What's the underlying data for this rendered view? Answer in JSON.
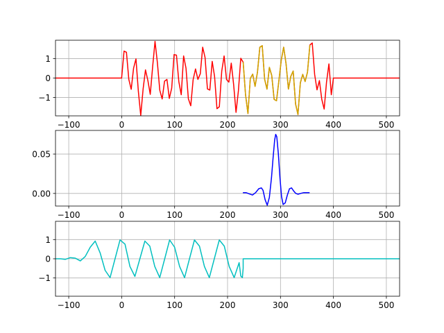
{
  "chart_data": [
    {
      "type": "line",
      "xlim": [
        -125,
        525
      ],
      "ylim": [
        -1.95,
        1.95
      ],
      "grid": true,
      "xticks": [
        -100,
        0,
        100,
        200,
        300,
        400,
        500
      ],
      "xtick_labels": [
        "−100",
        "0",
        "100",
        "200",
        "300",
        "400",
        "500"
      ],
      "yticks": [
        1,
        0,
        -1
      ],
      "ytick_labels": [
        "1",
        "0",
        "−1"
      ],
      "series": [
        {
          "color": "#ff0000",
          "x": [
            -125,
            -50,
            0,
            0,
            4.5,
            9,
            13.5,
            18,
            22.5,
            27,
            31.5,
            36,
            40.5,
            45,
            49.5,
            54,
            58.5,
            63,
            67.5,
            72,
            76.5,
            81,
            85.5,
            90,
            94.5,
            99,
            103.5,
            108,
            112.5,
            117,
            121.5,
            126,
            130.5,
            135,
            139.5,
            144,
            148.5,
            153,
            157.5,
            162,
            166.5,
            171,
            175.5,
            180,
            184.5,
            189,
            193.5,
            198,
            202.5,
            207,
            211.5,
            216,
            220.5,
            225,
            229.5,
            234,
            238.5,
            243,
            247.5,
            252,
            256.5,
            261,
            265.5,
            270,
            274.5,
            279,
            283.5,
            288,
            292.5,
            297,
            301.5,
            306,
            310.5,
            315,
            319.5,
            324,
            328.5,
            333,
            337.5,
            342,
            346.5,
            351,
            355.5,
            360,
            364.5,
            369,
            373.5,
            378,
            382.5,
            387,
            391.5,
            396,
            400,
            400,
            450,
            525
          ],
          "y": [
            0,
            0,
            0,
            0.03,
            1.39,
            1.33,
            -0.07,
            -0.58,
            0.51,
            0.99,
            -0.68,
            -1.93,
            -0.56,
            0.42,
            -0.13,
            -0.84,
            0.58,
            1.89,
            0.78,
            -0.63,
            -1.08,
            -0.16,
            -0.07,
            -1.05,
            -0.52,
            1.21,
            1.18,
            -0.19,
            -0.86,
            1.14,
            0.51,
            -1.07,
            -1.43,
            -0.08,
            0.47,
            -0.07,
            0.22,
            1.59,
            1.06,
            -0.56,
            -0.62,
            0.86,
            0.08,
            -1.58,
            -1.48,
            0.35,
            1.14,
            -0.07,
            -0.21,
            0.77,
            -0.34,
            -1.77,
            -0.66,
            1.02,
            0.82,
            -0.86,
            -1.83,
            -0.02,
            0.2,
            -0.43,
            0.3,
            1.59,
            1.67,
            -0.06,
            -0.57,
            0.55,
            0.13,
            -1.1,
            -1.17,
            -0.13,
            0.93,
            1.59,
            0.74,
            -0.57,
            0.09,
            0.36,
            -1.34,
            -1.88,
            -0.25,
            0.19,
            -0.18,
            0.3,
            1.7,
            1.81,
            0.19,
            -0.61,
            -0.13,
            -1.1,
            -1.6,
            -0.2,
            0.73,
            -0.86,
            0,
            0,
            0,
            0
          ]
        },
        {
          "color": "#ccaa00",
          "x": [
            229.5,
            234,
            238.5,
            243,
            247.5,
            252,
            256.5,
            261,
            265.5,
            270,
            274.5,
            279,
            283.5,
            288,
            292.5,
            297,
            301.5,
            306,
            310.5,
            315,
            319.5,
            324,
            328.5,
            333,
            337.5,
            342,
            346.5,
            351,
            355.5
          ],
          "y": [
            0.82,
            -0.86,
            -1.83,
            -0.02,
            0.2,
            -0.43,
            0.3,
            1.59,
            1.67,
            -0.06,
            -0.57,
            0.55,
            0.13,
            -1.1,
            -1.17,
            -0.13,
            0.93,
            1.59,
            0.74,
            -0.57,
            0.09,
            0.36,
            -1.34,
            -1.88,
            -0.25,
            0.19,
            -0.18,
            0.3,
            1.7
          ]
        }
      ]
    },
    {
      "type": "line",
      "xlim": [
        -125,
        525
      ],
      "ylim": [
        -0.016,
        0.08
      ],
      "grid": true,
      "xticks": [
        -100,
        0,
        100,
        200,
        300,
        400,
        500
      ],
      "xtick_labels": [
        "−100",
        "0",
        "100",
        "200",
        "300",
        "400",
        "500"
      ],
      "yticks": [
        0.05,
        0.0
      ],
      "ytick_labels": [
        "0.05",
        "0.00"
      ],
      "series": [
        {
          "color": "#0000ff",
          "x": [
            229,
            235,
            241,
            247,
            253,
            259,
            264,
            267,
            271,
            275,
            279,
            283,
            286,
            289,
            291,
            293,
            296,
            299,
            302,
            305,
            309,
            313,
            317,
            321,
            325,
            329,
            333,
            338,
            344,
            350,
            355
          ],
          "y": [
            0.001,
            0.001,
            -0.0005,
            -0.002,
            0.001,
            0.006,
            0.007,
            0.004,
            -0.008,
            -0.015,
            -0.005,
            0.02,
            0.045,
            0.068,
            0.075,
            0.072,
            0.05,
            0.02,
            -0.004,
            -0.014,
            -0.012,
            -0.002,
            0.006,
            0.007,
            0.003,
            0.0,
            -0.001,
            0.0,
            0.001,
            0.001,
            0.001
          ]
        }
      ]
    },
    {
      "type": "line",
      "xlim": [
        -125,
        525
      ],
      "ylim": [
        -1.95,
        1.95
      ],
      "grid": true,
      "xticks": [
        -100,
        0,
        100,
        200,
        300,
        400,
        500
      ],
      "xtick_labels": [
        "−100",
        "0",
        "100",
        "200",
        "300",
        "400",
        "500"
      ],
      "yticks": [
        1,
        0,
        -1
      ],
      "ytick_labels": [
        "1",
        "0",
        "−1"
      ],
      "series": [
        {
          "color": "#00bfbf",
          "x": [
            -125,
            -115.6,
            -106.3,
            -96.9,
            -87.5,
            -78.1,
            -68.8,
            -59.4,
            -50,
            -40.6,
            -31.3,
            -21.9,
            -12.5,
            -3.1,
            6.3,
            15.6,
            25,
            34.4,
            43.8,
            53.1,
            62.5,
            71.9,
            81.3,
            90.6,
            100,
            109.4,
            118.8,
            128.1,
            137.5,
            146.9,
            156.3,
            165.6,
            175,
            184.4,
            193.8,
            203.1,
            212.5,
            221.9,
            225,
            228,
            229.5,
            229.5,
            300,
            400,
            525
          ],
          "y": [
            0,
            0,
            -0.03,
            0.06,
            0.03,
            -0.11,
            0.12,
            0.6,
            0.92,
            0.3,
            -0.6,
            -0.98,
            0,
            0.98,
            0.76,
            -0.4,
            -0.92,
            0,
            0.92,
            0.66,
            -0.4,
            -0.98,
            0,
            0.98,
            0.6,
            -0.4,
            -0.98,
            0,
            0.98,
            0.66,
            -0.4,
            -0.98,
            0,
            0.98,
            0.66,
            -0.4,
            -0.98,
            -0.2,
            -0.9,
            -0.98,
            -0.5,
            0,
            0,
            0,
            0
          ]
        }
      ]
    }
  ]
}
